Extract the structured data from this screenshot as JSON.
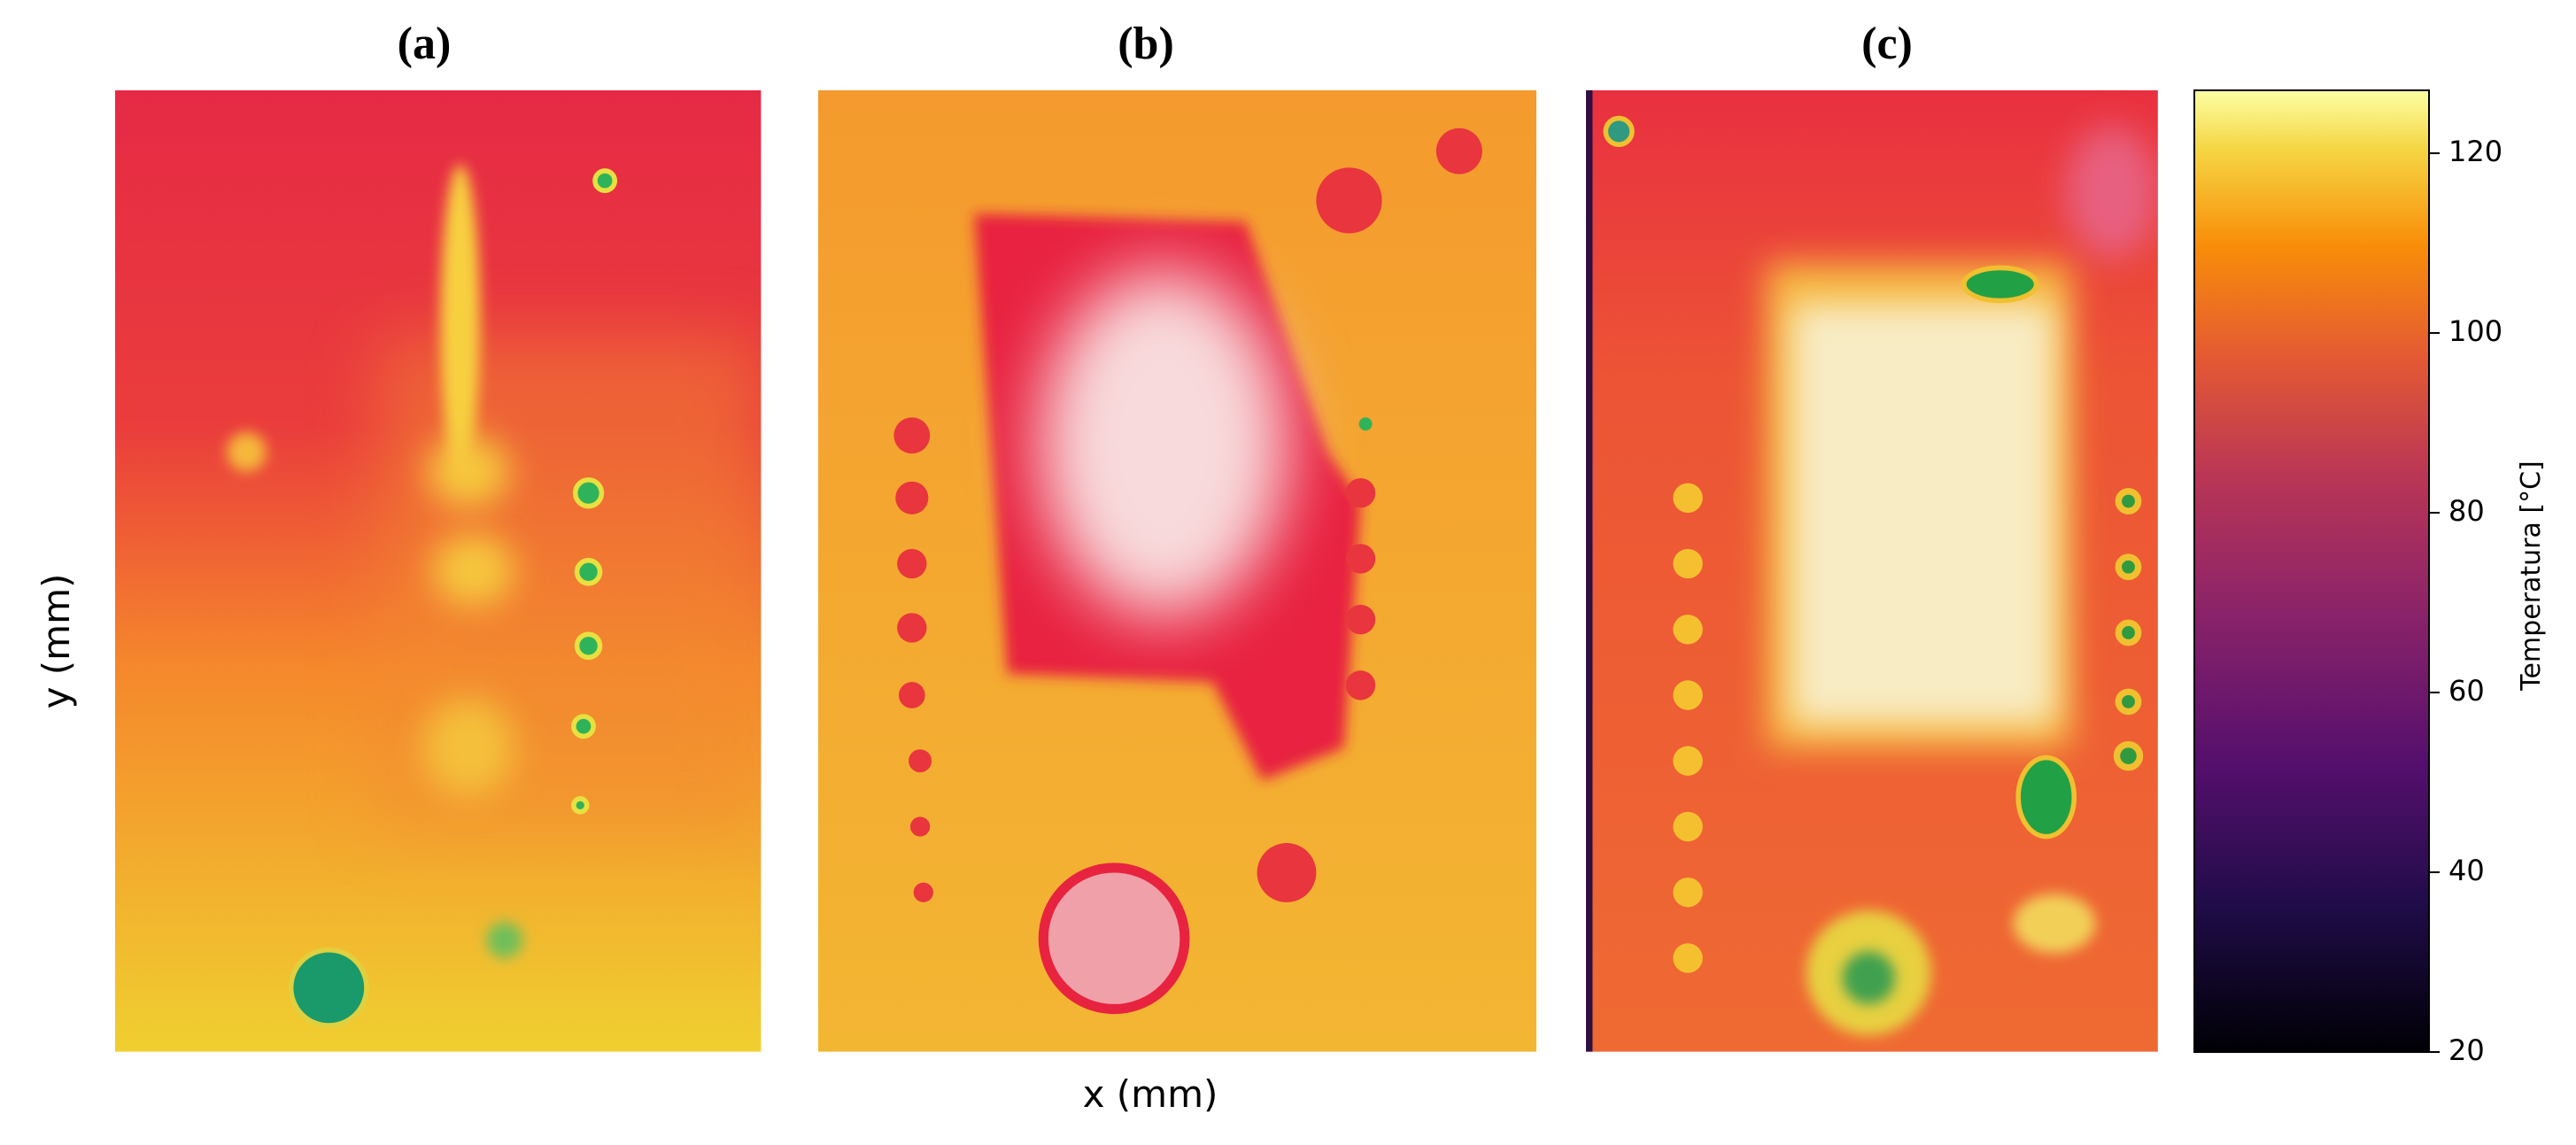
{
  "chart_data": {
    "type": "thermal",
    "panels": [
      "(a)",
      "(b)",
      "(c)"
    ],
    "x_label": "x (mm)",
    "y_label": "y (mm)",
    "colorbar": {
      "label": "Temperatura [°C]",
      "lim": [
        20,
        127
      ],
      "ticks": [
        20,
        40,
        60,
        80,
        100,
        120
      ]
    }
  }
}
